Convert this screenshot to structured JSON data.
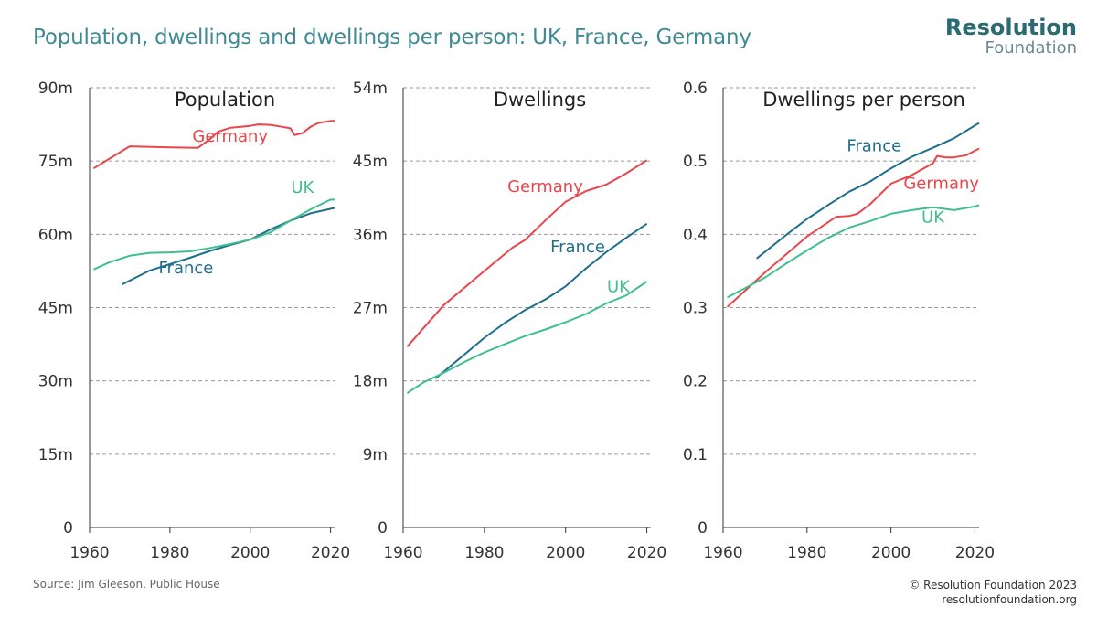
{
  "title": "Population, dwellings and dwellings per person: UK, France, Germany",
  "logo": {
    "line1": "Resolution",
    "line2": "Foundation"
  },
  "source": "Source: Jim Gleeson, Public House",
  "copyright": {
    "line1": "© Resolution Foundation 2023",
    "line2": "resolutionfoundation.org"
  },
  "colors": {
    "Germany": "#e8464b",
    "France": "#1f6e8c",
    "UK": "#3fbf8f",
    "title": "#3f8a93"
  },
  "chart_data": [
    {
      "type": "line",
      "title": "Population",
      "xlim": [
        1960,
        2021
      ],
      "ylim": [
        0,
        90
      ],
      "x_ticks": [
        1960,
        1980,
        2000,
        2020
      ],
      "y_ticks": [
        0,
        15,
        30,
        45,
        60,
        75,
        90
      ],
      "y_tick_labels": [
        "0",
        "15m",
        "30m",
        "45m",
        "60m",
        "75m",
        "90m"
      ],
      "grid": true,
      "series": [
        {
          "name": "Germany",
          "label_at": [
            1995,
            79
          ],
          "x": [
            1961,
            1970,
            1980,
            1987,
            1990,
            1992,
            1995,
            2000,
            2002,
            2005,
            2008,
            2010,
            2011,
            2013,
            2015,
            2017,
            2020,
            2021
          ],
          "y": [
            73.5,
            78,
            77.8,
            77.7,
            79.5,
            81,
            81.8,
            82.2,
            82.5,
            82.4,
            82,
            81.7,
            80.3,
            80.7,
            82,
            82.8,
            83.2,
            83.2
          ]
        },
        {
          "name": "France",
          "label_at": [
            1984,
            52
          ],
          "x": [
            1968,
            1975,
            1980,
            1985,
            1990,
            1995,
            2000,
            2005,
            2010,
            2015,
            2021
          ],
          "y": [
            49.7,
            52.6,
            53.9,
            55.2,
            56.6,
            57.8,
            58.9,
            61,
            62.8,
            64.3,
            65.4
          ]
        },
        {
          "name": "UK",
          "label_at": [
            2013,
            68.5
          ],
          "x": [
            1961,
            1965,
            1970,
            1975,
            1980,
            1985,
            1990,
            1995,
            2000,
            2005,
            2010,
            2015,
            2020,
            2021
          ],
          "y": [
            52.8,
            54.3,
            55.6,
            56.2,
            56.3,
            56.5,
            57.2,
            58,
            58.9,
            60.4,
            62.8,
            65.1,
            67.1,
            67.1
          ]
        }
      ]
    },
    {
      "type": "line",
      "title": "Dwellings",
      "xlim": [
        1960,
        2021
      ],
      "ylim": [
        0,
        54
      ],
      "x_ticks": [
        1960,
        1980,
        2000,
        2020
      ],
      "y_ticks": [
        0,
        9,
        18,
        27,
        36,
        45,
        54
      ],
      "y_tick_labels": [
        "0",
        "9m",
        "18m",
        "27m",
        "36m",
        "45m",
        "54m"
      ],
      "grid": true,
      "series": [
        {
          "name": "Germany",
          "label_at": [
            1995,
            41.2
          ],
          "x": [
            1961,
            1970,
            1980,
            1987,
            1990,
            1995,
            2000,
            2005,
            2010,
            2015,
            2020
          ],
          "y": [
            22.2,
            27.3,
            31.5,
            34.4,
            35.3,
            37.7,
            40,
            41.3,
            42.1,
            43.5,
            45.1
          ]
        },
        {
          "name": "France",
          "label_at": [
            2003,
            33.8
          ],
          "x": [
            1968,
            1975,
            1980,
            1985,
            1990,
            1995,
            2000,
            2005,
            2010,
            2015,
            2020
          ],
          "y": [
            18.3,
            21.2,
            23.3,
            25.1,
            26.7,
            28,
            29.6,
            31.8,
            33.8,
            35.6,
            37.3
          ]
        },
        {
          "name": "UK",
          "label_at": [
            2013,
            28.9
          ],
          "x": [
            1961,
            1965,
            1970,
            1975,
            1980,
            1985,
            1990,
            1995,
            2000,
            2005,
            2010,
            2015,
            2020
          ],
          "y": [
            16.5,
            17.8,
            19,
            20.3,
            21.5,
            22.5,
            23.5,
            24.3,
            25.2,
            26.2,
            27.5,
            28.5,
            30.2
          ]
        }
      ]
    },
    {
      "type": "line",
      "title": "Dwellings per person",
      "xlim": [
        1960,
        2021
      ],
      "ylim": [
        0,
        0.6
      ],
      "x_ticks": [
        1960,
        1980,
        2000,
        2020
      ],
      "y_ticks": [
        0,
        0.1,
        0.2,
        0.3,
        0.4,
        0.5,
        0.6
      ],
      "y_tick_labels": [
        "0",
        "0.1",
        "0.2",
        "0.3",
        "0.4",
        "0.5",
        "0.6"
      ],
      "grid": true,
      "series": [
        {
          "name": "Germany",
          "label_at": [
            2012,
            0.462
          ],
          "x": [
            1961,
            1970,
            1980,
            1987,
            1990,
            1992,
            1995,
            2000,
            2005,
            2010,
            2011,
            2013,
            2015,
            2018,
            2021
          ],
          "y": [
            0.301,
            0.348,
            0.397,
            0.424,
            0.425,
            0.428,
            0.441,
            0.469,
            0.481,
            0.497,
            0.507,
            0.505,
            0.505,
            0.508,
            0.517
          ]
        },
        {
          "name": "France",
          "label_at": [
            1996,
            0.513
          ],
          "x": [
            1968,
            1975,
            1980,
            1985,
            1990,
            1995,
            2000,
            2005,
            2010,
            2015,
            2021
          ],
          "y": [
            0.367,
            0.399,
            0.421,
            0.44,
            0.458,
            0.472,
            0.49,
            0.506,
            0.518,
            0.531,
            0.552
          ]
        },
        {
          "name": "UK",
          "label_at": [
            2010,
            0.416
          ],
          "x": [
            1961,
            1965,
            1970,
            1975,
            1980,
            1985,
            1990,
            1995,
            2000,
            2005,
            2010,
            2015,
            2020,
            2021
          ],
          "y": [
            0.314,
            0.326,
            0.341,
            0.36,
            0.378,
            0.395,
            0.409,
            0.418,
            0.428,
            0.433,
            0.437,
            0.433,
            0.438,
            0.44
          ]
        }
      ]
    }
  ]
}
